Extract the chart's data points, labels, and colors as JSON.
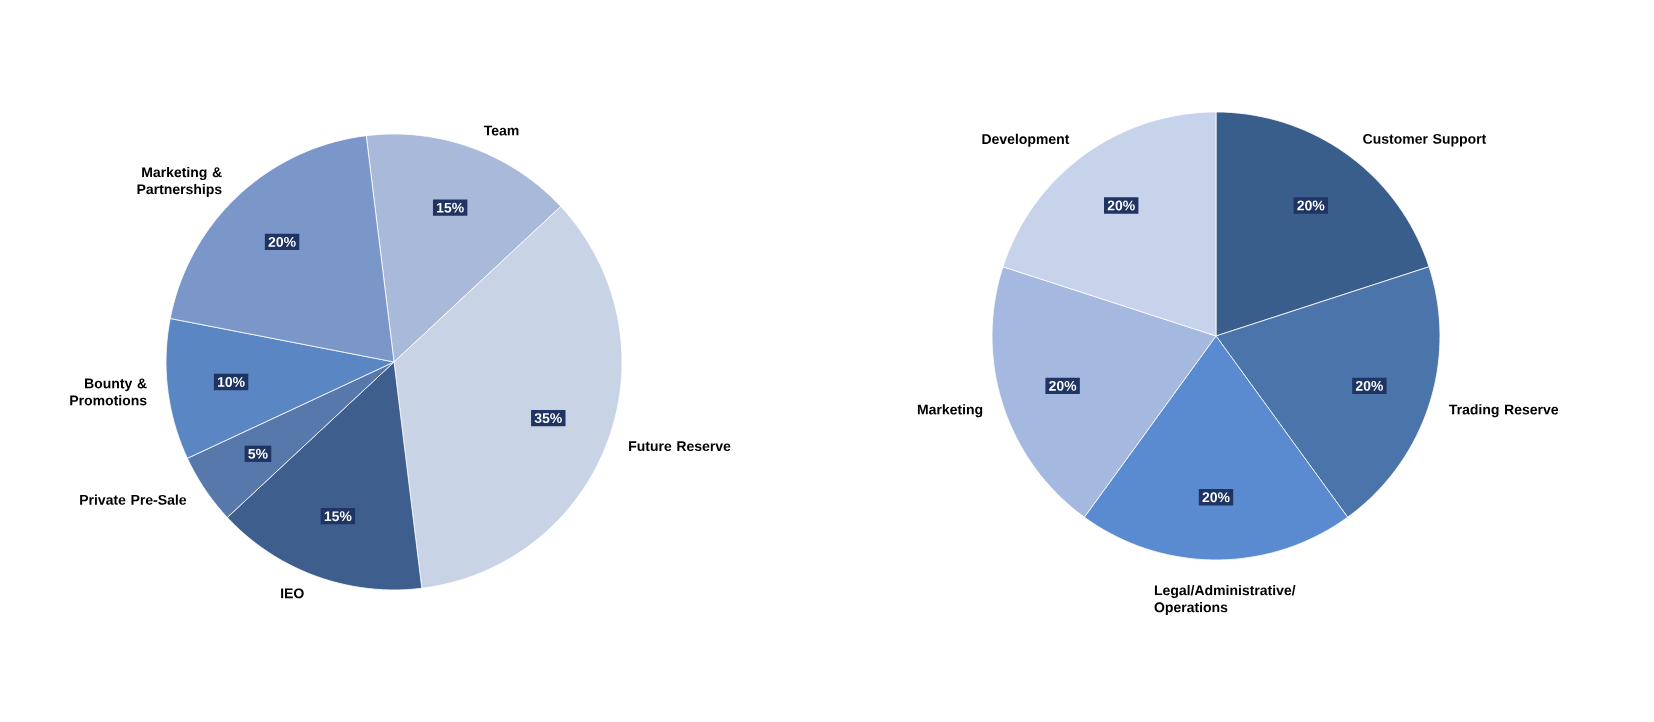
{
  "chart_data": [
    {
      "type": "pie",
      "categories": [
        "Team",
        "Future Reserve",
        "IEO",
        "Private Pre-Sale",
        "Bounty & Promotions",
        "Marketing & Partnerships"
      ],
      "values": [
        15,
        35,
        15,
        5,
        10,
        20
      ],
      "value_labels": [
        "15%",
        "35%",
        "15%",
        "5%",
        "10%",
        "20%"
      ],
      "colors": [
        "#a9b9d9",
        "#c9d3e6",
        "#3e5f8e",
        "#5678aa",
        "#5a86c4",
        "#7b96c8"
      ]
    },
    {
      "type": "pie",
      "categories": [
        "Customer Support",
        "Trading Reserve",
        "Legal/Administrative/ Operations",
        "Marketing",
        "Development"
      ],
      "values": [
        20,
        20,
        20,
        20,
        20
      ],
      "value_labels": [
        "20%",
        "20%",
        "20%",
        "20%",
        "20%"
      ],
      "colors": [
        "#3a5e8c",
        "#4a74aa",
        "#5a8ad0",
        "#a5b8e0",
        "#c7d3ea"
      ]
    }
  ]
}
